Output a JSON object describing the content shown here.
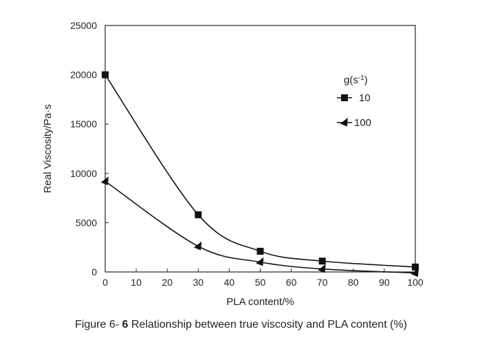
{
  "chart_data": {
    "type": "line",
    "xlabel": "PLA content/%",
    "ylabel": "Real Viscosity/Pa·s",
    "xlim": [
      0,
      100
    ],
    "ylim": [
      0,
      25000
    ],
    "x_ticks": [
      0,
      10,
      20,
      30,
      40,
      50,
      60,
      70,
      80,
      90,
      100
    ],
    "y_ticks": [
      0,
      5000,
      10000,
      15000,
      20000,
      25000
    ],
    "grid": false,
    "legend_title": "g(s-1)",
    "legend_position": "right",
    "series": [
      {
        "name": "10",
        "marker": "square",
        "color": "#111111",
        "x": [
          0,
          30,
          50,
          70,
          100
        ],
        "y": [
          20000,
          5800,
          2100,
          1100,
          500
        ]
      },
      {
        "name": "100",
        "marker": "triangle",
        "color": "#111111",
        "x": [
          0,
          30,
          50,
          70,
          100
        ],
        "y": [
          9200,
          2600,
          1000,
          300,
          -100
        ]
      }
    ]
  },
  "caption": {
    "prefix": "Figure 6-",
    "number": "6",
    "text": "Relationship between true viscosity and PLA content (%)"
  }
}
